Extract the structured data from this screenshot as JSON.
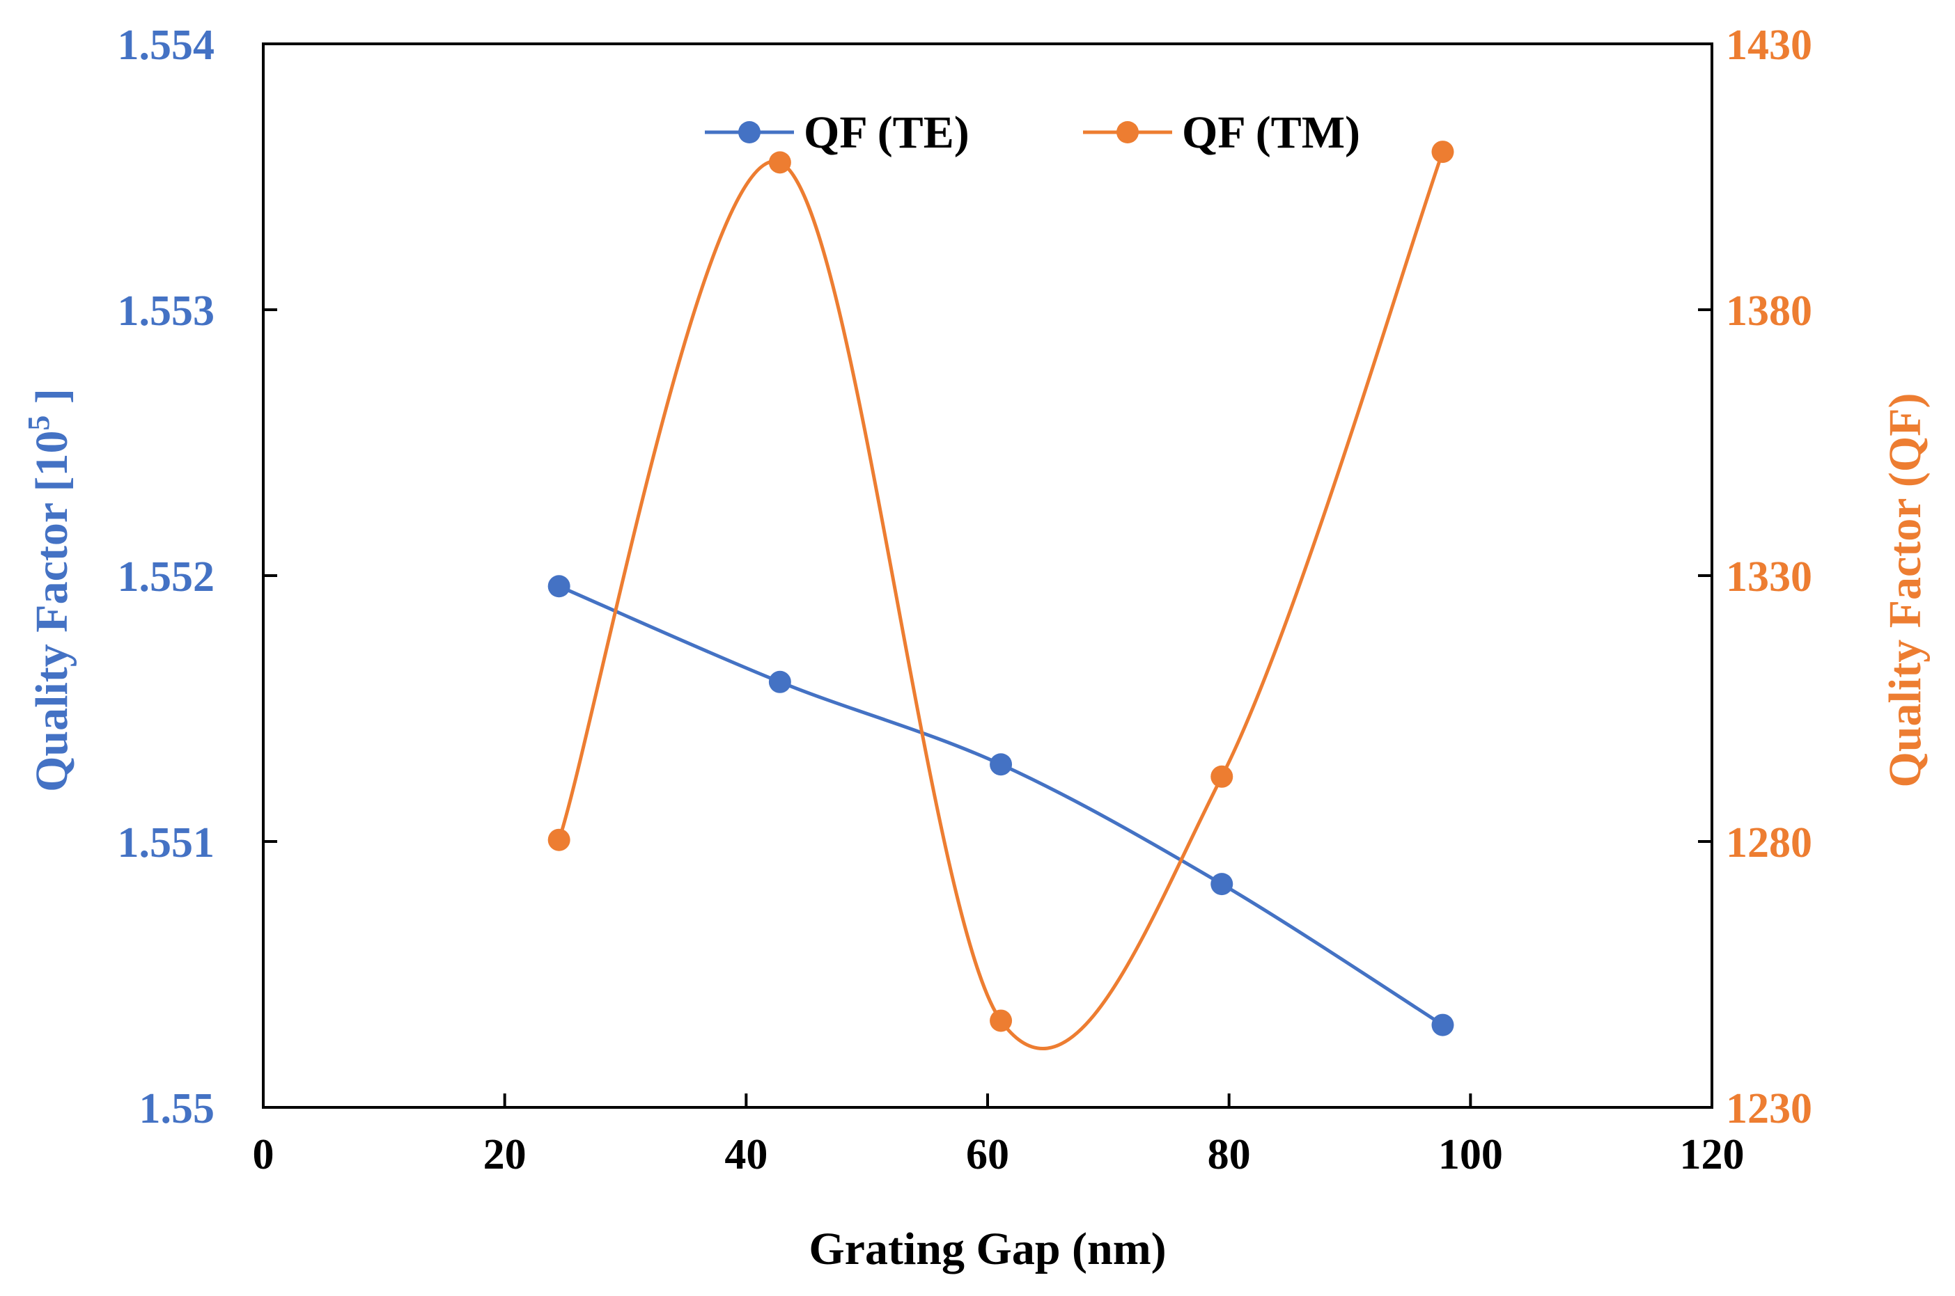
{
  "chart_data": {
    "type": "line",
    "title": "",
    "xlabel": "Grating Gap (nm)",
    "ylabel_left_main": "Quality Factor  [10",
    "ylabel_left_sup": "5",
    "ylabel_left_end": " ]",
    "ylabel_right": "Quality Factor (QF)",
    "xlim": [
      0,
      120
    ],
    "ylim_left": [
      1.55,
      1.554
    ],
    "ylim_right": [
      1230,
      1430
    ],
    "x_ticks": [
      0,
      20,
      40,
      60,
      80,
      100,
      120
    ],
    "x_tick_labels": [
      "0",
      "20",
      "40",
      "60",
      "80",
      "100",
      "120"
    ],
    "y_left_ticks": [
      1.55,
      1.551,
      1.552,
      1.553,
      1.554
    ],
    "y_left_tick_labels": [
      "1.55",
      "1.551",
      "1.552",
      "1.553",
      "1.554"
    ],
    "y_right_ticks": [
      1230,
      1280,
      1330,
      1380,
      1430
    ],
    "y_right_tick_labels": [
      "1230",
      "1280",
      "1330",
      "1380",
      "1430"
    ],
    "grid": false,
    "legend_position": "top-center",
    "series": [
      {
        "name": "QF (TE)",
        "axis": "left",
        "color": "#4472C4",
        "x": [
          24.5,
          42.8,
          61.1,
          79.4,
          97.7
        ],
        "values": [
          1.55196,
          1.5516,
          1.55129,
          1.55084,
          1.55031
        ]
      },
      {
        "name": "QF (TM)",
        "axis": "right",
        "color": "#ED7D31",
        "x": [
          24.5,
          42.8,
          61.1,
          79.4,
          97.7
        ],
        "values": [
          1280.3,
          1407.7,
          1246.3,
          1292.2,
          1409.7
        ]
      }
    ]
  }
}
